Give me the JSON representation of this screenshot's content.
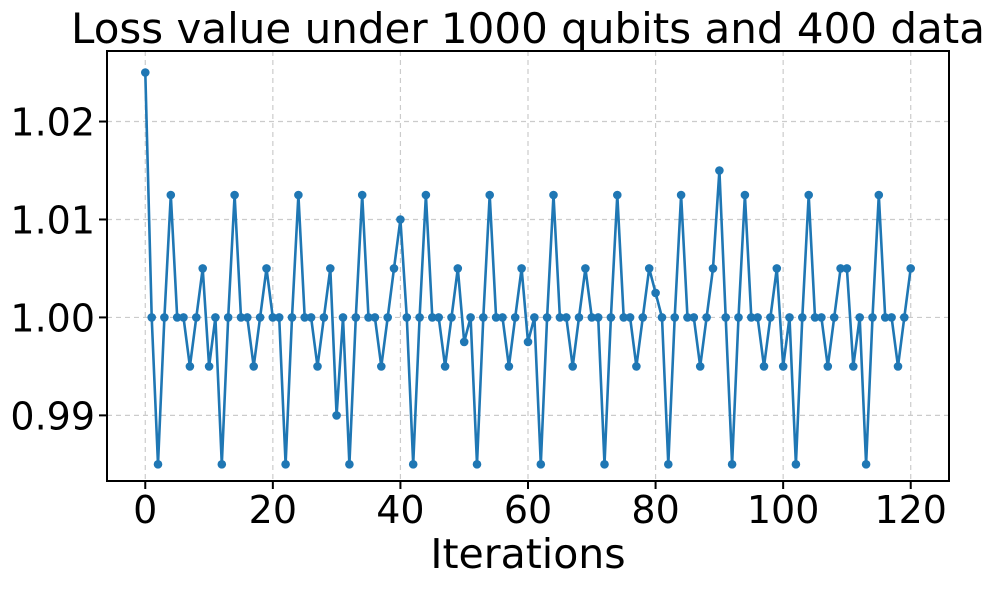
{
  "figure": {
    "background_color": "#ffffff",
    "text_color": "#000000"
  },
  "chart_data": {
    "type": "line",
    "title": "Loss value under 1000 qubits and 400 data",
    "xlabel": "Iterations",
    "ylabel": "",
    "legend": null,
    "grid": true,
    "grid_style": "dashed",
    "grid_color": "#cbcbcb",
    "line_color": "#1f77b4",
    "marker": "circle",
    "marker_color": "#1f77b4",
    "xlim": [
      -6,
      126
    ],
    "ylim": [
      0.9833,
      1.0272
    ],
    "x_ticks": [
      0,
      20,
      40,
      60,
      80,
      100,
      120
    ],
    "y_ticks": [
      0.99,
      1.0,
      1.01,
      1.02
    ],
    "y_tick_labels": [
      "0.99",
      "1.00",
      "1.01",
      "1.02"
    ],
    "x_start": 0,
    "x_step": 1,
    "values": [
      1.025,
      1.0,
      0.985,
      1.0,
      1.0125,
      1.0,
      1.0,
      0.995,
      1.0,
      1.005,
      0.995,
      1.0,
      0.985,
      1.0,
      1.0125,
      1.0,
      1.0,
      0.995,
      1.0,
      1.005,
      1.0,
      1.0,
      0.985,
      1.0,
      1.0125,
      1.0,
      1.0,
      0.995,
      1.0,
      1.005,
      0.99,
      1.0,
      0.985,
      1.0,
      1.0125,
      1.0,
      1.0,
      0.995,
      1.0,
      1.005,
      1.01,
      1.0,
      0.985,
      1.0,
      1.0125,
      1.0,
      1.0,
      0.995,
      1.0,
      1.005,
      0.9975,
      1.0,
      0.985,
      1.0,
      1.0125,
      1.0,
      1.0,
      0.995,
      1.0,
      1.005,
      0.9975,
      1.0,
      0.985,
      1.0,
      1.0125,
      1.0,
      1.0,
      0.995,
      1.0,
      1.005,
      1.0,
      1.0,
      0.985,
      1.0,
      1.0125,
      1.0,
      1.0,
      0.995,
      1.0,
      1.005,
      1.0025,
      1.0,
      0.985,
      1.0,
      1.0125,
      1.0,
      1.0,
      0.995,
      1.0,
      1.005,
      1.015,
      1.0,
      0.985,
      1.0,
      1.0125,
      1.0,
      1.0,
      0.995,
      1.0,
      1.005,
      0.995,
      1.0,
      0.985,
      1.0,
      1.0125,
      1.0,
      1.0,
      0.995,
      1.0,
      1.005,
      1.005,
      0.995,
      1.0,
      0.985,
      1.0,
      1.0125,
      1.0,
      1.0,
      0.995,
      1.0,
      1.005
    ]
  }
}
